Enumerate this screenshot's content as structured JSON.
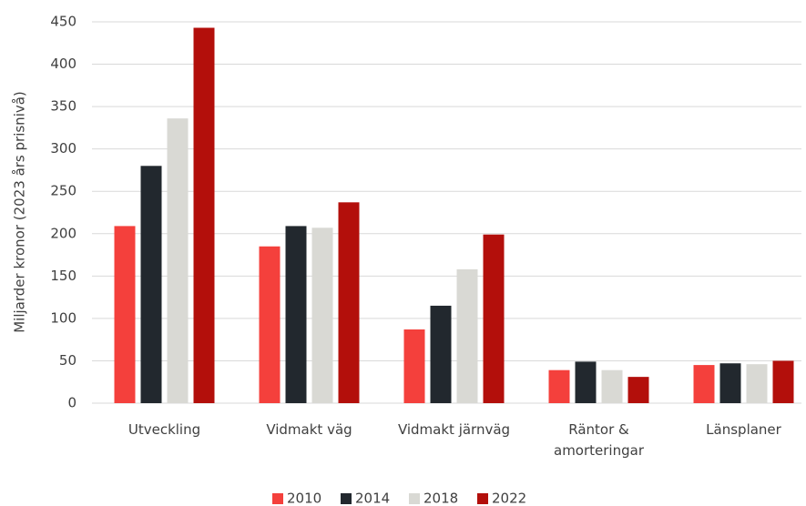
{
  "chart_data": {
    "type": "bar",
    "ylabel": "Miljarder kronor (2023 års prisnivå)",
    "categories": [
      "Utveckling",
      "Vidmakt väg",
      "Vidmakt järnväg",
      "Räntor & amorteringar",
      "Länsplaner"
    ],
    "series": [
      {
        "name": "2010",
        "color": "#f4403c",
        "values": [
          209,
          185,
          87,
          39,
          45
        ]
      },
      {
        "name": "2014",
        "color": "#22282e",
        "values": [
          280,
          209,
          115,
          49,
          47
        ]
      },
      {
        "name": "2018",
        "color": "#d9d9d4",
        "values": [
          336,
          207,
          158,
          39,
          46
        ]
      },
      {
        "name": "2022",
        "color": "#b30f0b",
        "values": [
          443,
          237,
          199,
          31,
          50
        ]
      }
    ],
    "ylim": [
      0,
      450
    ],
    "yticks": [
      0,
      50,
      100,
      150,
      200,
      250,
      300,
      350,
      400,
      450
    ],
    "grid": true
  }
}
